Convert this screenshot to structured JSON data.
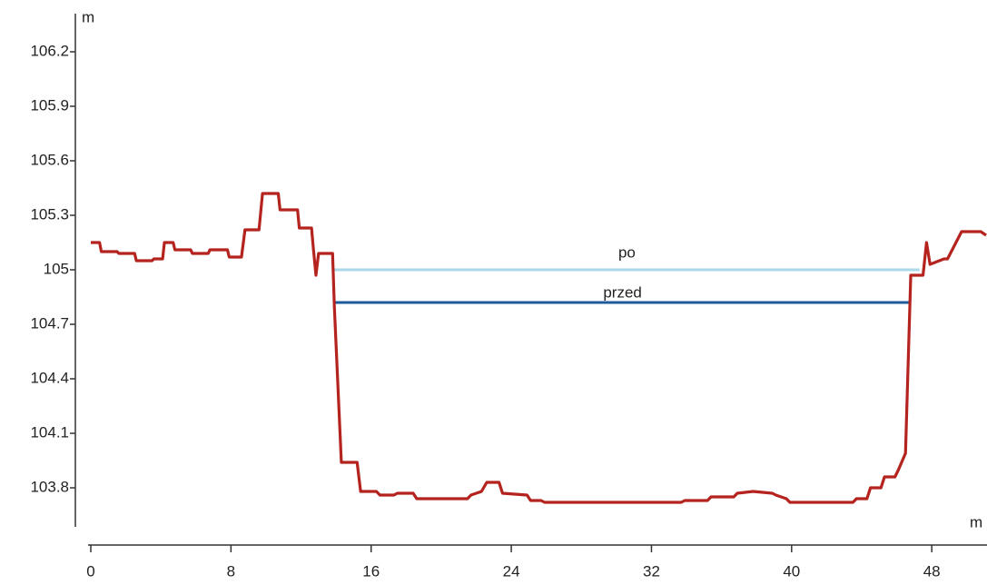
{
  "chart_data": {
    "type": "line",
    "y_label": "m",
    "x_label": "m",
    "xlim": [
      0,
      51.1
    ],
    "xticks": [
      0,
      8,
      16,
      24,
      32,
      40,
      48
    ],
    "ylim": [
      103.6,
      106.4
    ],
    "yticks": [
      103.8,
      104.1,
      104.4,
      104.7,
      105,
      105.3,
      105.6,
      105.9,
      106.2
    ],
    "series": [
      {
        "color": "#b5231f",
        "x": [
          0,
          0.5,
          0.6,
          1.5,
          1.6,
          2.5,
          2.6,
          3.5,
          3.6,
          4.1,
          4.2,
          4.7,
          4.8,
          5.7,
          5.8,
          6.7,
          6.8,
          7.8,
          7.9,
          8.6,
          8.8,
          9.6,
          9.8,
          10.7,
          10.8,
          11.8,
          11.9,
          12.6,
          12.7,
          12.85,
          13.0,
          13.8,
          13.9,
          14.3,
          15.2,
          15.4,
          16.3,
          16.5,
          17.3,
          17.5,
          18.4,
          18.6,
          21.5,
          21.7,
          22.3,
          22.6,
          23.3,
          23.5,
          24.9,
          25.1,
          25.7,
          25.9,
          26.5,
          26.7,
          33.7,
          33.9,
          35.2,
          35.4,
          36.7,
          36.9,
          37.8,
          38.9,
          39.1,
          39.7,
          39.9,
          41.5,
          43.5,
          43.7,
          44.3,
          44.5,
          45.1,
          45.3,
          45.9,
          46.1,
          46.5,
          46.8,
          47.5,
          47.7,
          47.9,
          48.7,
          48.9,
          49.7,
          49.9,
          50.8,
          51.1
        ],
        "values": [
          105.15,
          105.15,
          105.1,
          105.1,
          105.09,
          105.09,
          105.05,
          105.05,
          105.06,
          105.06,
          105.15,
          105.15,
          105.11,
          105.11,
          105.09,
          105.09,
          105.11,
          105.11,
          105.07,
          105.07,
          105.22,
          105.22,
          105.42,
          105.42,
          105.33,
          105.33,
          105.23,
          105.23,
          105.12,
          104.97,
          105.09,
          105.09,
          104.8,
          103.94,
          103.94,
          103.78,
          103.78,
          103.76,
          103.76,
          103.77,
          103.77,
          103.74,
          103.74,
          103.76,
          103.78,
          103.83,
          103.83,
          103.77,
          103.76,
          103.73,
          103.73,
          103.72,
          103.72,
          103.72,
          103.72,
          103.73,
          103.73,
          103.75,
          103.75,
          103.77,
          103.78,
          103.77,
          103.76,
          103.74,
          103.72,
          103.72,
          103.72,
          103.74,
          103.74,
          103.8,
          103.8,
          103.86,
          103.86,
          103.9,
          103.99,
          104.97,
          104.97,
          105.15,
          105.03,
          105.06,
          105.06,
          105.21,
          105.21,
          105.21,
          105.19
        ]
      },
      {
        "name": "po",
        "color": "#a8d8ea",
        "x": [
          13.9,
          47.3
        ],
        "values": [
          105,
          105
        ]
      },
      {
        "name": "przed",
        "color": "#1f5a9a",
        "x": [
          13.9,
          46.8
        ],
        "values": [
          104.82,
          104.82
        ]
      }
    ]
  }
}
